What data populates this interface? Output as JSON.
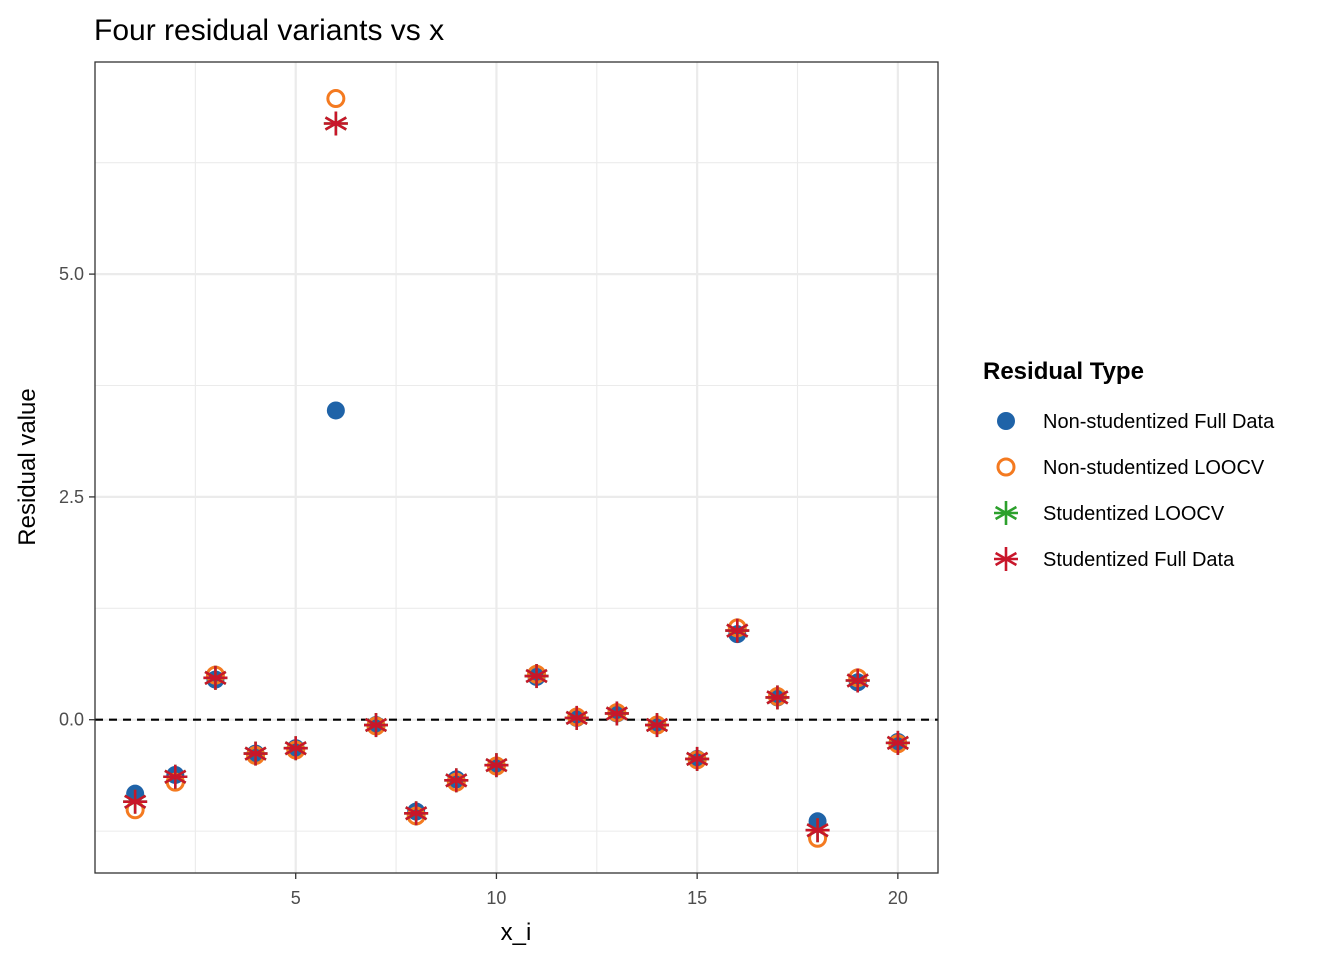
{
  "chart_data": {
    "type": "scatter",
    "title": "Four residual variants vs x",
    "xlabel": "x_i",
    "ylabel": "Residual value",
    "xlim": [
      0.0,
      21.0
    ],
    "ylim": [
      -1.72,
      7.38
    ],
    "x_ticks": [
      5,
      10,
      15,
      20
    ],
    "x_tick_labels": [
      "5",
      "10",
      "15",
      "20"
    ],
    "y_ticks": [
      0.0,
      2.5,
      5.0
    ],
    "y_tick_labels": [
      "0.0",
      "2.5",
      "5.0"
    ],
    "grid": true,
    "reference_line": {
      "y": 0,
      "style": "dashed",
      "color": "#000000"
    },
    "legend": {
      "title": "Residual Type",
      "position": "right"
    },
    "x": [
      1,
      2,
      3,
      4,
      5,
      6,
      7,
      8,
      9,
      10,
      11,
      12,
      13,
      14,
      15,
      16,
      17,
      18,
      19,
      20
    ],
    "series": [
      {
        "name": "Non-studentized Full Data",
        "marker": "filled-circle",
        "color": "#1f63a8",
        "values": [
          -0.83,
          -0.62,
          0.45,
          -0.38,
          -0.32,
          3.47,
          -0.06,
          -1.03,
          -0.67,
          -0.52,
          0.48,
          0.02,
          0.07,
          -0.06,
          -0.44,
          0.96,
          0.25,
          -1.14,
          0.42,
          -0.25
        ]
      },
      {
        "name": "Non-studentized LOOCV",
        "marker": "open-circle",
        "color": "#f47a20",
        "values": [
          -1.01,
          -0.7,
          0.5,
          -0.4,
          -0.34,
          6.97,
          -0.07,
          -1.08,
          -0.7,
          -0.52,
          0.51,
          0.03,
          0.08,
          -0.06,
          -0.45,
          1.03,
          0.26,
          -1.33,
          0.47,
          -0.27
        ]
      },
      {
        "name": "Studentized LOOCV",
        "marker": "asterisk",
        "color": "#2ca02c",
        "values": [
          -0.92,
          -0.64,
          0.47,
          -0.38,
          -0.32,
          6.69,
          -0.06,
          -1.05,
          -0.68,
          -0.51,
          0.49,
          0.02,
          0.07,
          -0.06,
          -0.44,
          1.0,
          0.25,
          -1.24,
          0.44,
          -0.26
        ]
      },
      {
        "name": "Studentized Full Data",
        "marker": "asterisk",
        "color": "#c8162a",
        "values": [
          -0.92,
          -0.64,
          0.47,
          -0.38,
          -0.32,
          6.69,
          -0.06,
          -1.05,
          -0.68,
          -0.51,
          0.49,
          0.02,
          0.07,
          -0.06,
          -0.44,
          1.0,
          0.25,
          -1.24,
          0.44,
          -0.26
        ]
      }
    ]
  }
}
